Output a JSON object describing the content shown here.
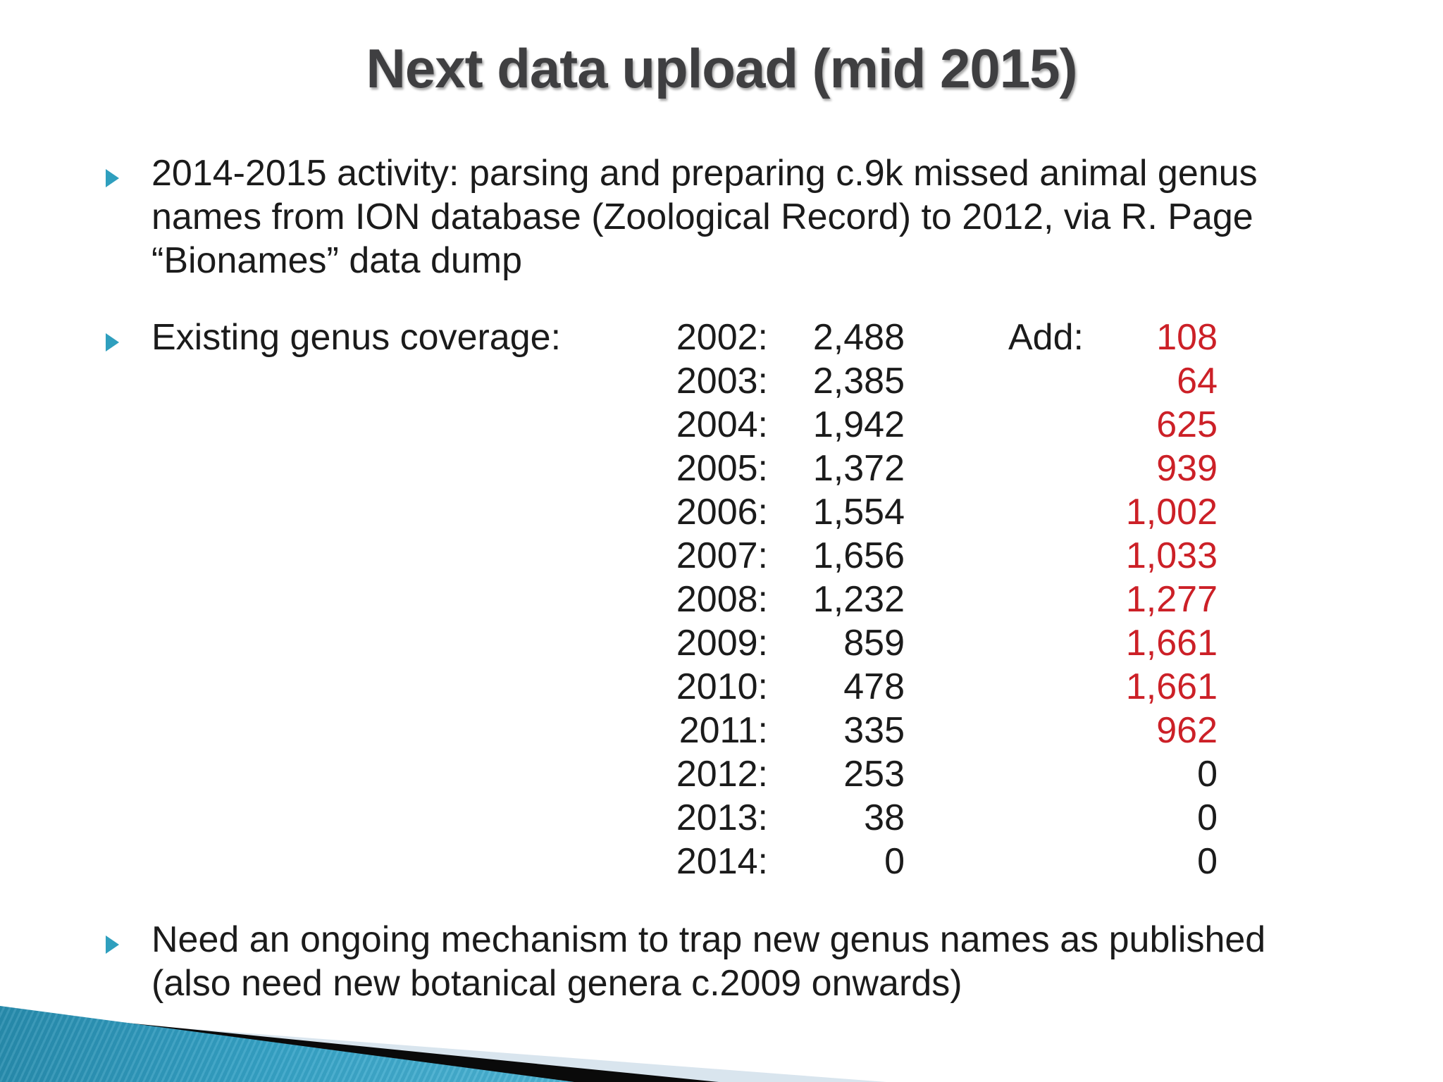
{
  "slide": {
    "title": "Next data upload (mid 2015)",
    "bullet_activity": "2014-2015 activity: parsing and preparing c.9k missed animal genus\nnames from ION database (Zoological Record) to 2012, via R. Page\n“Bionames” data dump",
    "bullet_coverage_label": "Existing genus coverage:",
    "bullet_mechanism": "Need an ongoing mechanism to trap new genus names as published\n(also need new botanical genera c.2009 onwards)",
    "coverage_table": {
      "add_header": "Add:",
      "rows": [
        {
          "year": "2002:",
          "existing": "2,488",
          "added": "108",
          "added_red": true
        },
        {
          "year": "2003:",
          "existing": "2,385",
          "added": "64",
          "added_red": true
        },
        {
          "year": "2004:",
          "existing": "1,942",
          "added": "625",
          "added_red": true
        },
        {
          "year": "2005:",
          "existing": "1,372",
          "added": "939",
          "added_red": true
        },
        {
          "year": "2006:",
          "existing": "1,554",
          "added": "1,002",
          "added_red": true
        },
        {
          "year": "2007:",
          "existing": "1,656",
          "added": "1,033",
          "added_red": true
        },
        {
          "year": "2008:",
          "existing": "1,232",
          "added": "1,277",
          "added_red": true
        },
        {
          "year": "2009:",
          "existing": "859",
          "added": "1,661",
          "added_red": true
        },
        {
          "year": "2010:",
          "existing": "478",
          "added": "1,661",
          "added_red": true
        },
        {
          "year": "2011:",
          "existing": "335",
          "added": "962",
          "added_red": true
        },
        {
          "year": "2012:",
          "existing": "253",
          "added": "0",
          "added_red": false
        },
        {
          "year": "2013:",
          "existing": "38",
          "added": "0",
          "added_red": false
        },
        {
          "year": "2014:",
          "existing": "0",
          "added": "0",
          "added_red": false
        }
      ]
    },
    "colors": {
      "bullet_marker": "#2f9fbe",
      "added_red": "#cc2027",
      "title_gray": "#3f3f41",
      "body_black": "#1b1b1b",
      "swoosh_teal_dark": "#1e7e9e",
      "swoosh_teal_light": "#57bcda",
      "swoosh_pale": "#d9e5ee",
      "swoosh_stripe": "#0a0a0a"
    }
  }
}
